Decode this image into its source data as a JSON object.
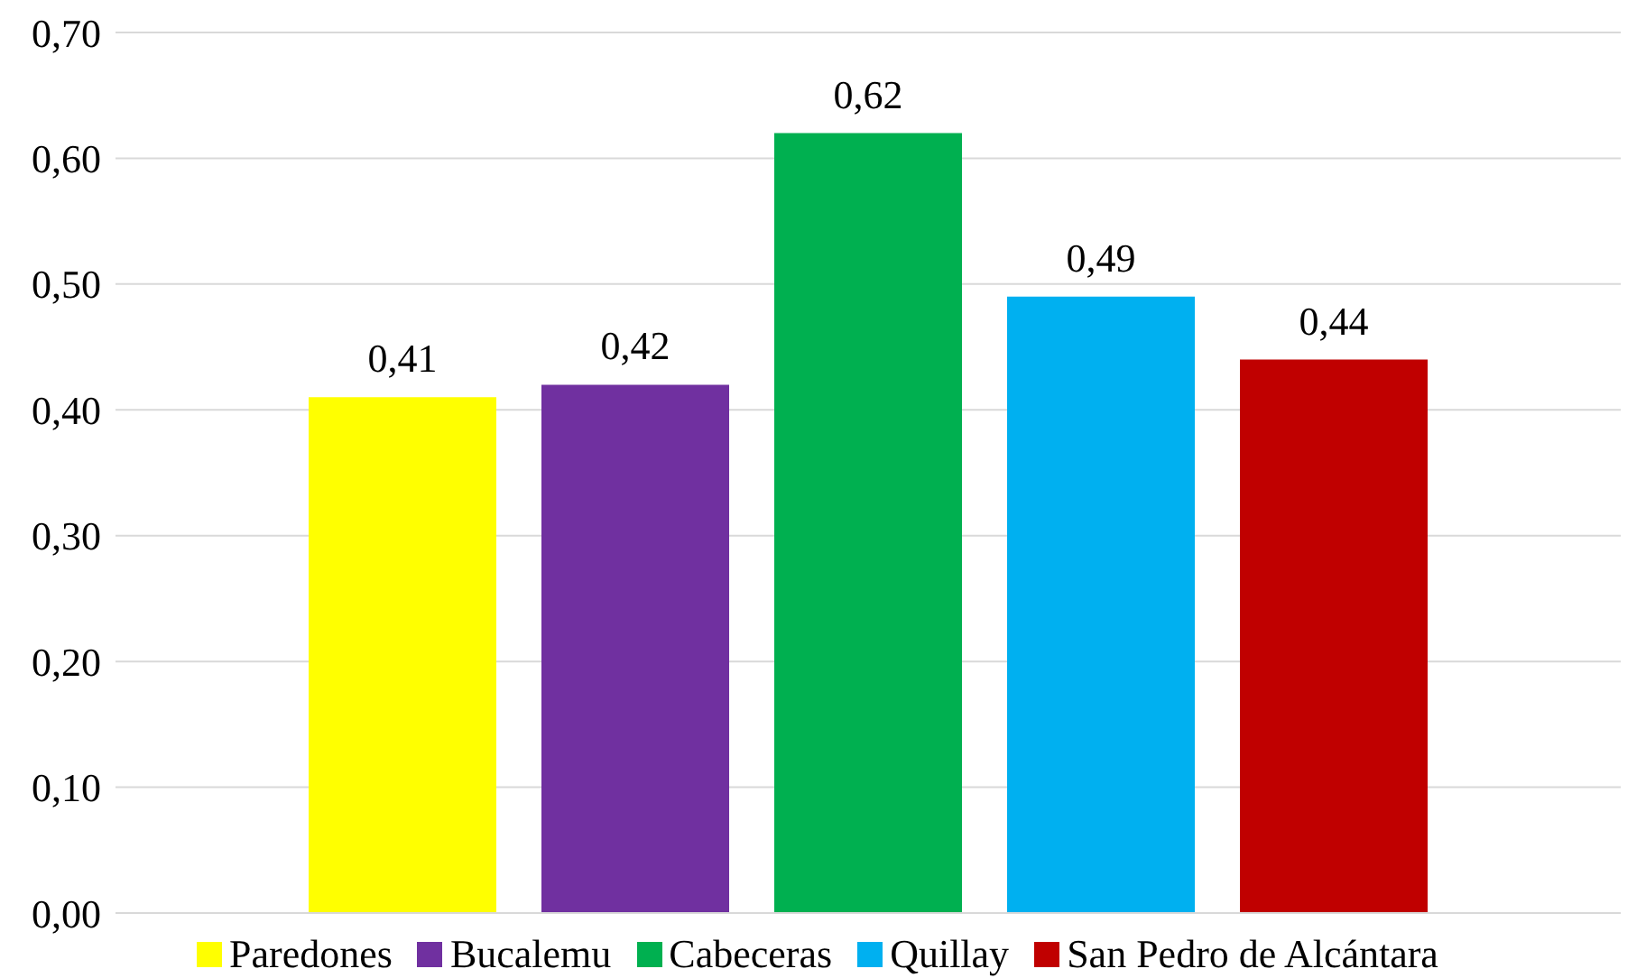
{
  "chart_data": {
    "type": "bar",
    "categories": [
      null
    ],
    "series": [
      {
        "name": "Paredones",
        "color": "#ffff00",
        "values": [
          0.41
        ],
        "value_labels": [
          "0,41"
        ]
      },
      {
        "name": "Bucalemu",
        "color": "#7030a0",
        "values": [
          0.42
        ],
        "value_labels": [
          "0,42"
        ]
      },
      {
        "name": "Cabeceras",
        "color": "#00b050",
        "values": [
          0.62
        ],
        "value_labels": [
          "0,62"
        ]
      },
      {
        "name": "Quillay",
        "color": "#00b0f0",
        "values": [
          0.49
        ],
        "value_labels": [
          "0,49"
        ]
      },
      {
        "name": "San Pedro de Alcántara",
        "color": "#c00000",
        "values": [
          0.44
        ],
        "value_labels": [
          "0,44"
        ]
      }
    ],
    "ylim": [
      0,
      0.7
    ],
    "yticks": [
      {
        "value": 0,
        "label": "0,00"
      },
      {
        "value": 0.1,
        "label": "0,10"
      },
      {
        "value": 0.2,
        "label": "0,20"
      },
      {
        "value": 0.3,
        "label": "0,30"
      },
      {
        "value": 0.4,
        "label": "0,40"
      },
      {
        "value": 0.5,
        "label": "0,50"
      },
      {
        "value": 0.6,
        "label": "0,60"
      },
      {
        "value": 0.7,
        "label": "0,70"
      }
    ],
    "grid": "y",
    "legend": "bottom"
  }
}
